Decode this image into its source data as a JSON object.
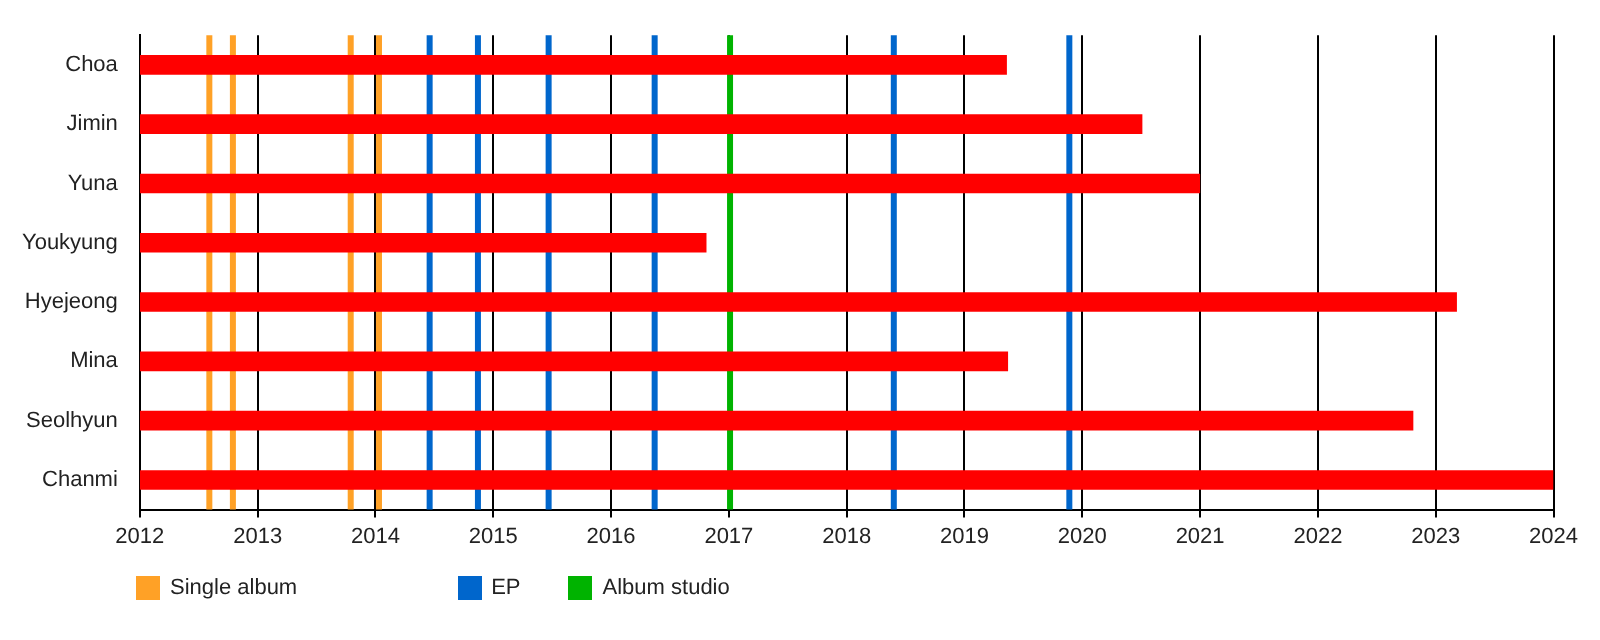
{
  "chart_data": {
    "type": "bar",
    "orientation": "horizontal",
    "categories": [
      "Choa",
      "Jimin",
      "Yuna",
      "Youkyung",
      "Hyejeong",
      "Mina",
      "Seolhyun",
      "Chanmi"
    ],
    "base": [
      2012,
      2012,
      2012,
      2012,
      2012,
      2012,
      2012,
      2012
    ],
    "values": [
      7.36,
      8.51,
      9.0,
      4.81,
      11.18,
      7.37,
      10.81,
      12
    ],
    "color": "#ff0000",
    "xlim": [
      2012,
      2024
    ],
    "xticks": [
      2012,
      2013,
      2014,
      2015,
      2016,
      2017,
      2018,
      2019,
      2020,
      2021,
      2022,
      2023,
      2024
    ],
    "grid": "x",
    "legend": "bottom left",
    "ref_lines": [
      {
        "axis": "x",
        "value": 2012.59,
        "label": "Single album",
        "color": "#ffa126"
      },
      {
        "axis": "x",
        "value": 2012.79,
        "color": "#ffa126"
      },
      {
        "axis": "x",
        "value": 2013.79,
        "color": "#ffa126"
      },
      {
        "axis": "x",
        "value": 2014.03,
        "color": "#ffa126"
      },
      {
        "axis": "x",
        "value": 2014.46,
        "label": "EP",
        "color": "#0066cc"
      },
      {
        "axis": "x",
        "value": 2014.87,
        "color": "#0066cc"
      },
      {
        "axis": "x",
        "value": 2015.47,
        "color": "#0066cc"
      },
      {
        "axis": "x",
        "value": 2016.37,
        "color": "#0066cc"
      },
      {
        "axis": "x",
        "value": 2018.4,
        "color": "#0066cc"
      },
      {
        "axis": "x",
        "value": 2019.89,
        "color": "#0066cc"
      },
      {
        "axis": "x",
        "value": 2017.01,
        "label": "Album studio",
        "color": "#00b300"
      }
    ]
  }
}
